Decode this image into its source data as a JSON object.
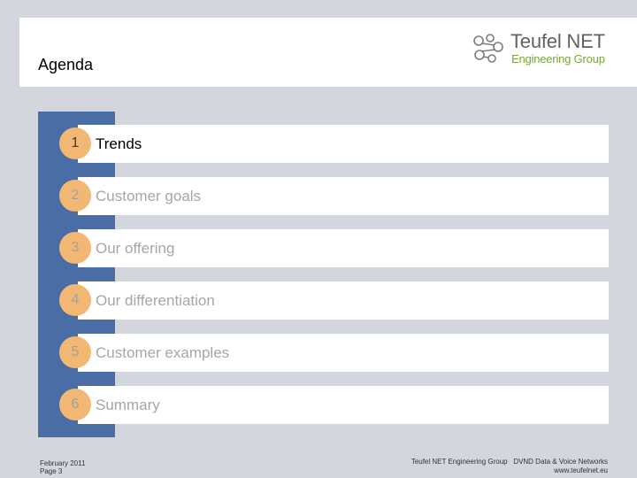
{
  "header": {
    "title": "Agenda",
    "logo": {
      "name": "Teufel NET",
      "subtitle": "Engineering Group",
      "icon": "network-nodes-icon",
      "colors": {
        "name": "#5f6265",
        "subtitle": "#78a63a"
      }
    }
  },
  "agenda": {
    "items": [
      {
        "number": "1",
        "label": "Trends",
        "active": true
      },
      {
        "number": "2",
        "label": "Customer goals",
        "active": false
      },
      {
        "number": "3",
        "label": "Our offering",
        "active": false
      },
      {
        "number": "4",
        "label": "Our differentiation",
        "active": false
      },
      {
        "number": "5",
        "label": "Customer examples",
        "active": false
      },
      {
        "number": "6",
        "label": "Summary",
        "active": false
      }
    ]
  },
  "footer": {
    "date": "February 2011",
    "page": "Page 3",
    "company_line": "Teufel NET Engineering Group   DVND Data & Voice Networks",
    "website": "www.teufelnet.eu"
  },
  "colors": {
    "background": "#d3d6dd",
    "bar": "#4a6da6",
    "circle": "#f2b873",
    "inactive_text": "#a6a6a6"
  }
}
